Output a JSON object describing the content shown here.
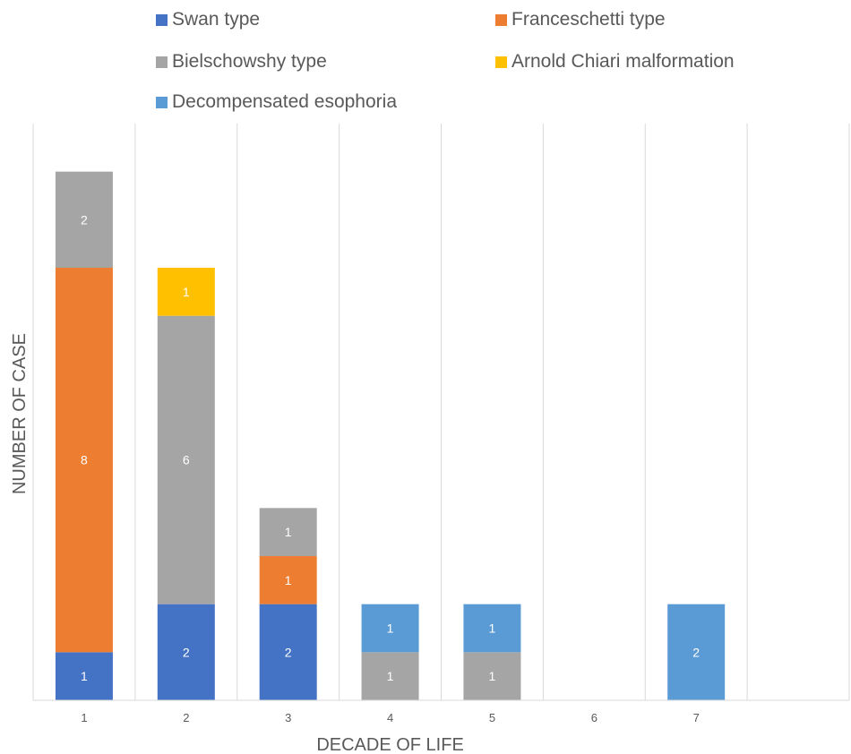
{
  "chart_data": {
    "type": "bar",
    "stacked": true,
    "categories": [
      "1",
      "2",
      "3",
      "4",
      "5",
      "6",
      "7"
    ],
    "xlabel": "DECADE OF LIFE",
    "ylabel": "NUMBER OF CASE",
    "ylim": [
      0,
      12
    ],
    "grid": "vertical",
    "legend_position": "top",
    "series": [
      {
        "name": "Swan type",
        "color": "#4472C4",
        "values": [
          1,
          2,
          2,
          0,
          0,
          0,
          0
        ]
      },
      {
        "name": "Franceschetti type",
        "color": "#ED7D31",
        "values": [
          8,
          0,
          1,
          0,
          0,
          0,
          0
        ]
      },
      {
        "name": "Bielschowshy type",
        "color": "#A5A5A5",
        "values": [
          2,
          6,
          1,
          1,
          1,
          0,
          0
        ]
      },
      {
        "name": "Arnold Chiari malformation",
        "color": "#FFC000",
        "values": [
          0,
          1,
          0,
          0,
          0,
          0,
          0
        ]
      },
      {
        "name": "Decompensated esophoria",
        "color": "#5B9BD5",
        "values": [
          0,
          0,
          0,
          1,
          1,
          0,
          2
        ]
      }
    ]
  }
}
